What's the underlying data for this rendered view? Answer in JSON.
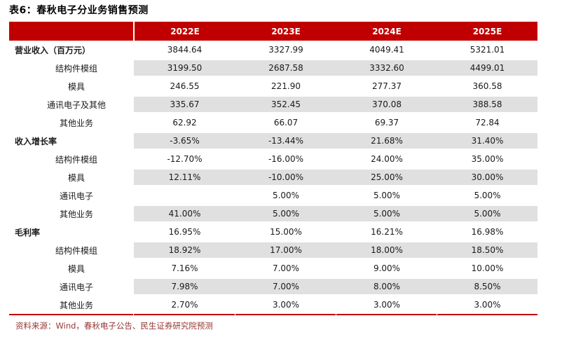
{
  "title": "表6：春秋电子分业务销售预测",
  "source_note": "资料来源：Wind，春秋电子公告、民生证券研究院预测",
  "colors": {
    "header_bg": "#c00000",
    "row_alt": "#e0e0e0",
    "source_text": "#953735",
    "accent": "#c00000"
  },
  "chart_data": {
    "type": "table",
    "title": "春秋电子分业务销售预测",
    "columns": [
      "",
      "2022E",
      "2023E",
      "2024E",
      "2025E"
    ],
    "rows": [
      {
        "label": "营业收入（百万元）",
        "bold": true,
        "shaded": false,
        "values": [
          "3844.64",
          "3327.99",
          "4049.41",
          "5321.01"
        ]
      },
      {
        "label": "结构件模组",
        "bold": false,
        "shaded": true,
        "values": [
          "3199.50",
          "2687.58",
          "3332.60",
          "4499.01"
        ]
      },
      {
        "label": "模具",
        "bold": false,
        "shaded": false,
        "values": [
          "246.55",
          "221.90",
          "277.37",
          "360.58"
        ]
      },
      {
        "label": "通讯电子及其他",
        "bold": false,
        "shaded": true,
        "values": [
          "335.67",
          "352.45",
          "370.08",
          "388.58"
        ]
      },
      {
        "label": "其他业务",
        "bold": false,
        "shaded": false,
        "values": [
          "62.92",
          "66.07",
          "69.37",
          "72.84"
        ]
      },
      {
        "label": "收入增长率",
        "bold": true,
        "shaded": true,
        "values": [
          "-3.65%",
          "-13.44%",
          "21.68%",
          "31.40%"
        ]
      },
      {
        "label": "结构件模组",
        "bold": false,
        "shaded": false,
        "values": [
          "-12.70%",
          "-16.00%",
          "24.00%",
          "35.00%"
        ]
      },
      {
        "label": "模具",
        "bold": false,
        "shaded": true,
        "values": [
          "12.11%",
          "-10.00%",
          "25.00%",
          "30.00%"
        ]
      },
      {
        "label": "通讯电子",
        "bold": false,
        "shaded": false,
        "values": [
          "",
          "5.00%",
          "5.00%",
          "5.00%"
        ]
      },
      {
        "label": "其他业务",
        "bold": false,
        "shaded": true,
        "values": [
          "41.00%",
          "5.00%",
          "5.00%",
          "5.00%"
        ]
      },
      {
        "label": "毛利率",
        "bold": true,
        "shaded": false,
        "values": [
          "16.95%",
          "15.00%",
          "16.21%",
          "16.98%"
        ]
      },
      {
        "label": "结构件模组",
        "bold": false,
        "shaded": true,
        "values": [
          "18.92%",
          "17.00%",
          "18.00%",
          "18.50%"
        ]
      },
      {
        "label": "模具",
        "bold": false,
        "shaded": false,
        "values": [
          "7.16%",
          "7.00%",
          "9.00%",
          "10.00%"
        ]
      },
      {
        "label": "通讯电子",
        "bold": false,
        "shaded": true,
        "values": [
          "7.98%",
          "7.00%",
          "8.00%",
          "8.50%"
        ]
      },
      {
        "label": "其他业务",
        "bold": false,
        "shaded": false,
        "values": [
          "2.70%",
          "3.00%",
          "3.00%",
          "3.00%"
        ]
      }
    ]
  }
}
